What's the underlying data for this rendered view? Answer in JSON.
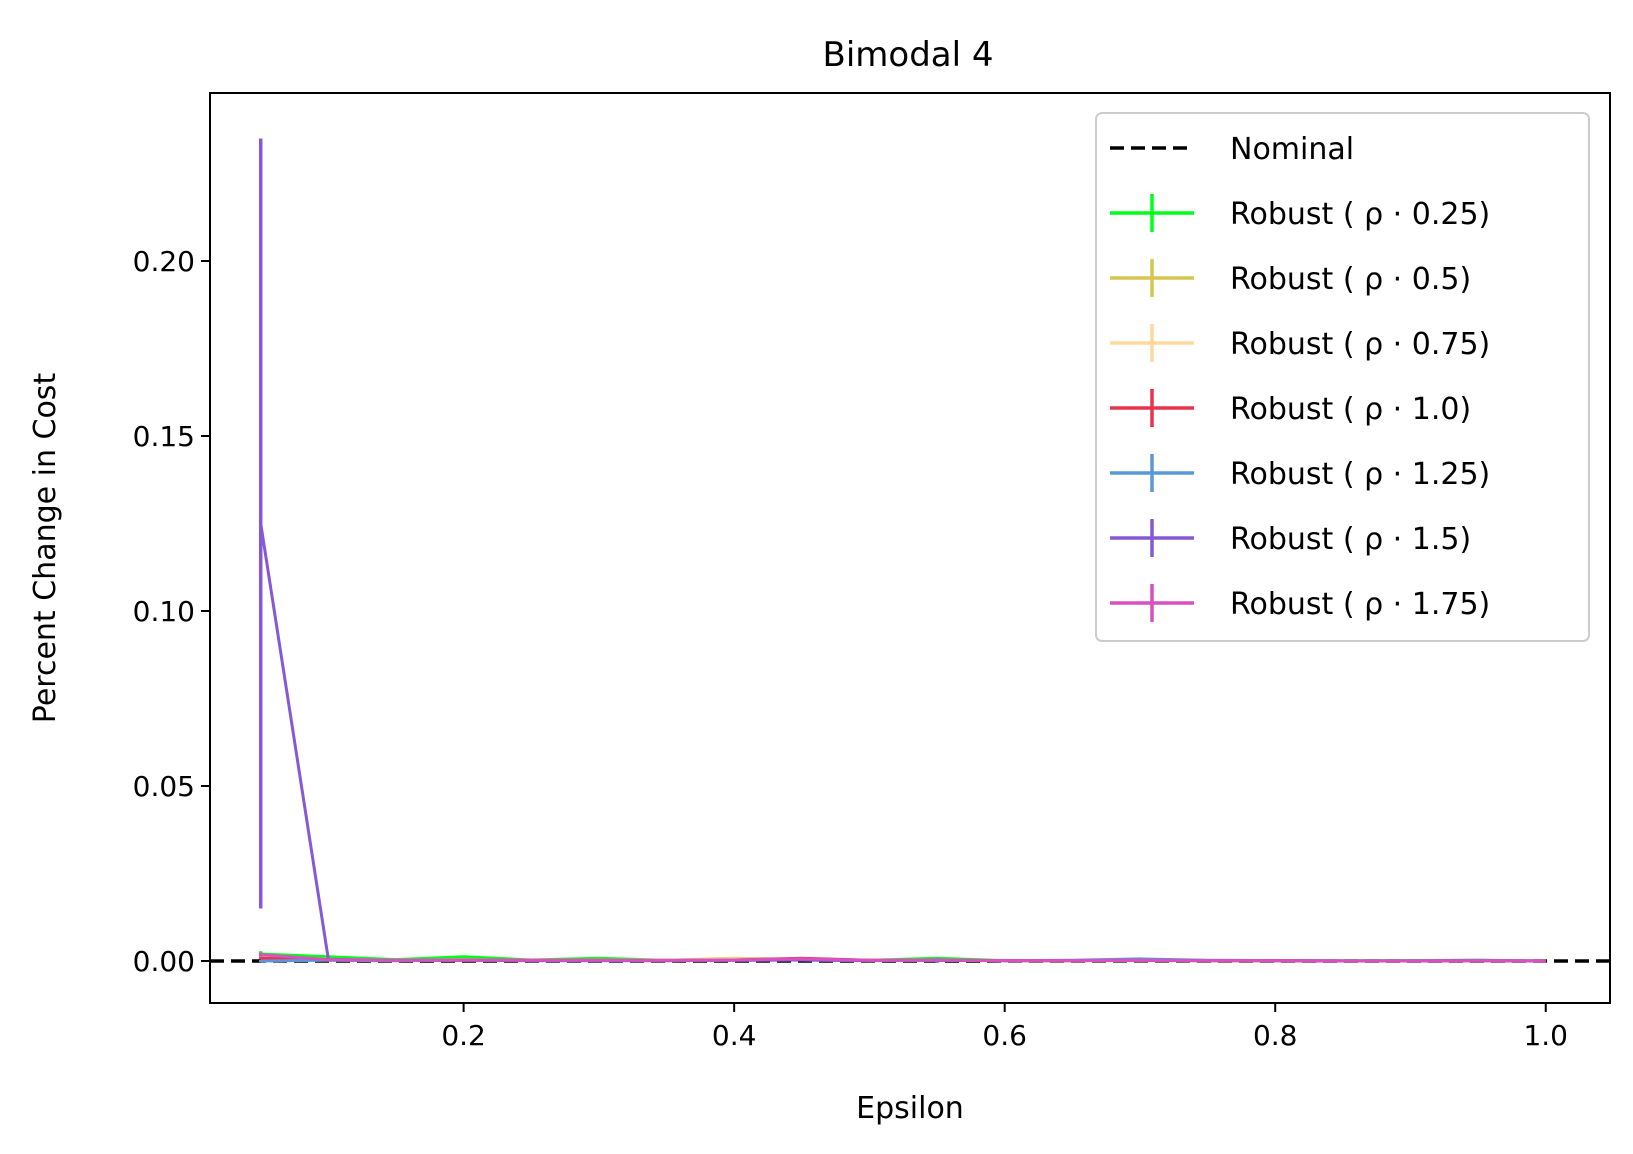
{
  "chart_data": {
    "type": "line",
    "title": "Bimodal 4",
    "xlabel": "Epsilon",
    "ylabel": "Percent Change in Cost",
    "xlim": [
      0.0125,
      1.0475
    ],
    "ylim": [
      -0.012,
      0.248
    ],
    "xticks": [
      0.2,
      0.4,
      0.6,
      0.8,
      1.0
    ],
    "xtick_labels": [
      "0.2",
      "0.4",
      "0.6",
      "0.8",
      "1.0"
    ],
    "yticks": [
      0.0,
      0.05,
      0.1,
      0.15,
      0.2
    ],
    "ytick_labels": [
      "0.00",
      "0.05",
      "0.10",
      "0.15",
      "0.20"
    ],
    "grid": false,
    "legend_position": "top-right",
    "x": [
      0.05,
      0.1,
      0.15,
      0.2,
      0.25,
      0.3,
      0.35,
      0.4,
      0.45,
      0.5,
      0.55,
      0.6,
      0.65,
      0.7,
      0.75,
      0.8,
      0.85,
      0.9,
      0.95,
      1.0
    ],
    "nominal": {
      "name": "Nominal",
      "value": 0.0,
      "color": "#000000"
    },
    "series": [
      {
        "name": "Robust (ρ·0.25)",
        "legend_text": "Robust ( ρ · 0.25)",
        "color": "#00ff1a",
        "values": [
          0.002,
          0.0012,
          0.0004,
          0.0012,
          0.0003,
          0.0008,
          0.0002,
          0.0003,
          0.0005,
          0.0002,
          0.0008,
          0.0001,
          0.0001,
          0.0002,
          0.0001,
          0.0001,
          0.0,
          0.0001,
          0.0002,
          0.0
        ],
        "errors": [
          0.0008,
          0.0004,
          0.0002,
          0.0004,
          0.0001,
          0.0003,
          0.0001,
          0.0001,
          0.0002,
          0.0001,
          0.0003,
          0.0,
          0.0,
          0.0001,
          0.0,
          0.0,
          0.0,
          0.0,
          0.0001,
          0.0
        ]
      },
      {
        "name": "Robust (ρ·0.5)",
        "legend_text": "Robust ( ρ · 0.5)",
        "color": "#d4c650",
        "values": [
          0.0012,
          0.0005,
          0.0002,
          0.0004,
          0.0002,
          0.0003,
          0.0002,
          0.0008,
          0.0004,
          0.0002,
          0.0003,
          0.0001,
          0.0001,
          0.0001,
          0.0001,
          0.0001,
          0.0,
          0.0,
          0.0001,
          0.0
        ],
        "errors": [
          0.0005,
          0.0002,
          0.0001,
          0.0002,
          0.0001,
          0.0001,
          0.0001,
          0.0003,
          0.0002,
          0.0001,
          0.0001,
          0.0,
          0.0,
          0.0,
          0.0,
          0.0,
          0.0,
          0.0,
          0.0,
          0.0
        ]
      },
      {
        "name": "Robust (ρ·0.75)",
        "legend_text": "Robust ( ρ · 0.75)",
        "color": "#ffd8a0",
        "values": [
          0.001,
          0.0004,
          0.0002,
          0.0003,
          0.0002,
          0.0002,
          0.0002,
          0.0006,
          0.0003,
          0.0002,
          0.0002,
          0.0001,
          0.0001,
          0.0001,
          0.0001,
          0.0001,
          0.0,
          0.0,
          0.0001,
          0.0
        ],
        "errors": [
          0.0004,
          0.0002,
          0.0001,
          0.0001,
          0.0001,
          0.0001,
          0.0001,
          0.0002,
          0.0001,
          0.0001,
          0.0001,
          0.0,
          0.0,
          0.0,
          0.0,
          0.0,
          0.0,
          0.0,
          0.0,
          0.0
        ]
      },
      {
        "name": "Robust (ρ·1.0)",
        "legend_text": "Robust ( ρ · 1.0)",
        "color": "#e8334f",
        "values": [
          0.0008,
          0.0003,
          0.0001,
          0.0002,
          0.0002,
          0.0002,
          0.0001,
          0.0003,
          0.0008,
          0.0002,
          0.0002,
          0.0001,
          0.0001,
          0.0002,
          0.0001,
          0.0001,
          0.0,
          0.0,
          0.0001,
          0.0
        ],
        "errors": [
          0.0003,
          0.0001,
          0.0,
          0.0001,
          0.0001,
          0.0001,
          0.0,
          0.0001,
          0.0003,
          0.0001,
          0.0001,
          0.0,
          0.0,
          0.0001,
          0.0,
          0.0,
          0.0,
          0.0,
          0.0,
          0.0
        ]
      },
      {
        "name": "Robust (ρ·1.25)",
        "legend_text": "Robust ( ρ · 1.25)",
        "color": "#5b97d6",
        "values": [
          0.0,
          0.0002,
          0.0001,
          0.0002,
          0.0001,
          0.0001,
          0.0001,
          0.0002,
          0.0003,
          0.0001,
          0.0002,
          0.0001,
          0.0002,
          0.0006,
          0.0002,
          0.0001,
          0.0001,
          0.0001,
          0.0002,
          0.0
        ],
        "errors": [
          0.0003,
          0.0001,
          0.0,
          0.0001,
          0.0,
          0.0,
          0.0,
          0.0001,
          0.0001,
          0.0,
          0.0008,
          0.0,
          0.0001,
          0.0002,
          0.0001,
          0.0,
          0.0,
          0.0,
          0.0001,
          0.0
        ]
      },
      {
        "name": "Robust (ρ·1.5)",
        "legend_text": "Robust ( ρ · 1.5)",
        "color": "#8758d6",
        "values": [
          0.125,
          0.0005,
          0.0002,
          0.0002,
          0.0001,
          0.0001,
          0.0001,
          0.0002,
          0.0003,
          0.0001,
          0.0002,
          0.0001,
          0.0001,
          0.0002,
          0.0001,
          0.0001,
          0.0,
          0.0,
          0.0001,
          0.0
        ],
        "errors": [
          0.11,
          0.0002,
          0.0001,
          0.0001,
          0.0,
          0.0,
          0.0,
          0.0001,
          0.0001,
          0.0,
          0.0001,
          0.0,
          0.0,
          0.0001,
          0.0,
          0.0,
          0.0,
          0.0,
          0.0,
          0.0
        ]
      },
      {
        "name": "Robust (ρ·1.75)",
        "legend_text": "Robust ( ρ · 1.75)",
        "color": "#d950be",
        "values": [
          0.0018,
          0.0004,
          0.0002,
          0.0003,
          0.0002,
          0.0002,
          0.0002,
          0.0003,
          0.0006,
          0.0002,
          0.0003,
          0.0001,
          0.0001,
          0.0002,
          0.0001,
          0.0001,
          0.0,
          0.0,
          0.0001,
          0.0
        ],
        "errors": [
          0.0006,
          0.0002,
          0.0001,
          0.0001,
          0.0001,
          0.0001,
          0.0001,
          0.0001,
          0.0002,
          0.0001,
          0.0001,
          0.0,
          0.0,
          0.0001,
          0.0,
          0.0,
          0.0,
          0.0,
          0.0,
          0.0
        ]
      }
    ]
  }
}
